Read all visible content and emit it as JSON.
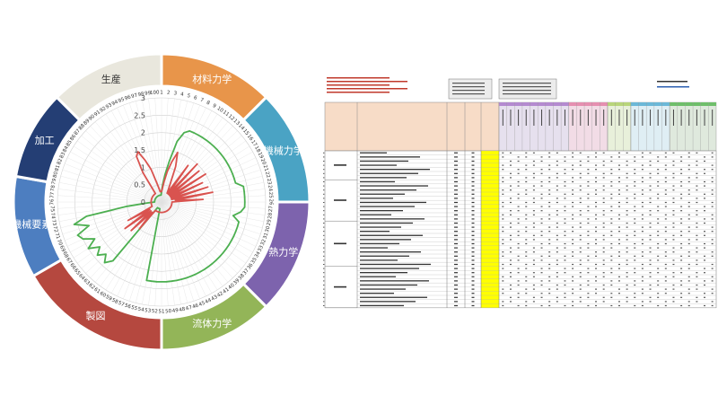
{
  "chart_data": [
    {
      "type": "radar",
      "sectors": [
        {
          "label": "材料力学",
          "color": "#e8954a"
        },
        {
          "label": "機械力学",
          "color": "#4aa3c4"
        },
        {
          "label": "熱力学",
          "color": "#7d63ad"
        },
        {
          "label": "流体力学",
          "color": "#93b558"
        },
        {
          "label": "製図",
          "color": "#b5483f"
        },
        {
          "label": "機械要素",
          "color": "#4d7ec0"
        },
        {
          "label": "加工",
          "color": "#243e74"
        },
        {
          "label": "生産",
          "color": "#e9e7dd"
        }
      ],
      "sector_spans": [
        [
          -90,
          -45
        ],
        [
          -45,
          0
        ],
        [
          0,
          45
        ],
        [
          45,
          90
        ],
        [
          90,
          150
        ],
        [
          150,
          190
        ],
        [
          190,
          225
        ],
        [
          225,
          270
        ]
      ],
      "rlim": [
        0,
        3
      ],
      "rticks": [
        "0",
        "0.5",
        "1",
        "1.5",
        "2",
        "2.5",
        "3"
      ],
      "categories": [
        "1",
        "2",
        "3",
        "4",
        "5",
        "6",
        "7",
        "8",
        "9",
        "10",
        "11",
        "12",
        "13",
        "14",
        "15",
        "16",
        "17",
        "18",
        "19",
        "20",
        "21",
        "22",
        "23",
        "24",
        "25",
        "26",
        "27",
        "28",
        "29",
        "30",
        "31",
        "32",
        "33",
        "34",
        "35",
        "36",
        "37",
        "38",
        "39",
        "40",
        "41",
        "42",
        "43",
        "44",
        "45",
        "46",
        "47",
        "48",
        "49",
        "50",
        "51",
        "52",
        "53",
        "54",
        "55",
        "56",
        "57",
        "58",
        "59",
        "60",
        "61",
        "62",
        "63",
        "64",
        "65",
        "66",
        "67",
        "68",
        "69",
        "70",
        "71",
        "72",
        "73",
        "74",
        "75",
        "76",
        "77",
        "78",
        "79",
        "80",
        "81",
        "82",
        "83",
        "84",
        "85",
        "86",
        "87",
        "88",
        "89",
        "90",
        "91",
        "92",
        "93",
        "94",
        "95",
        "96",
        "97",
        "98",
        "99",
        "100"
      ],
      "series": [
        {
          "color": "#4caf50",
          "values": [
            0.3,
            0.5,
            0.8,
            1.2,
            1.8,
            2.1,
            2.2,
            2.2,
            2.2,
            2.2,
            2.2,
            2.2,
            2.2,
            2.2,
            2.2,
            2.2,
            2.2,
            2.2,
            2.2,
            2.2,
            2.2,
            2.2,
            2.4,
            2.4,
            2.4,
            2.4,
            2.4,
            2.3,
            2.1,
            2.3,
            2.3,
            2.3,
            2.3,
            2.3,
            2.3,
            2.3,
            2.3,
            2.3,
            2.3,
            2.3,
            2.3,
            2.3,
            2.3,
            2.3,
            2.3,
            2.3,
            2.3,
            2.3,
            2.3,
            2.3,
            2.3,
            2.3,
            2.3,
            2.3,
            0.2,
            0.2,
            0.2,
            0.2,
            0.2,
            0.2,
            0.2,
            2.2,
            2.4,
            2.2,
            2.4,
            2.2,
            2.5,
            2.2,
            2.5,
            2.6,
            2.2,
            2.6,
            2.2,
            1.0,
            0.4,
            0.2,
            0.2,
            0.2,
            0.2,
            0.2,
            0.2,
            0.2,
            0.2,
            0.2,
            0.2,
            0.2,
            0.2,
            0.2,
            0.2,
            0.2,
            0.2,
            0.2,
            0.2,
            0.2,
            0.2,
            0.2,
            0.2,
            0.2,
            0.2,
            0.2
          ]
        },
        {
          "color": "#d9534f",
          "values": [
            0.3,
            0.4,
            0.6,
            0.9,
            1.2,
            1.5,
            1.1,
            0.6,
            0.4,
            0.3,
            1.3,
            0.3,
            1.5,
            0.3,
            1.4,
            0.3,
            1.5,
            0.3,
            1.3,
            0.3,
            1.4,
            0.3,
            1.5,
            0.4,
            1.2,
            0.3,
            0.3,
            0.3,
            0.3,
            0.3,
            0.3,
            0.3,
            0.3,
            0.3,
            0.3,
            0.3,
            0.3,
            0.3,
            0.3,
            0.3,
            0.3,
            0.3,
            0.3,
            0.3,
            0.3,
            0.3,
            0.3,
            0.3,
            0.3,
            0.3,
            0.3,
            0.3,
            0.3,
            0.3,
            0.3,
            0.3,
            0.3,
            0.3,
            0.3,
            0.3,
            0.3,
            1.0,
            0.4,
            1.2,
            0.4,
            1.3,
            0.4,
            1.1,
            0.3,
            0.3,
            0.3,
            0.3,
            0.3,
            0.3,
            0.3,
            0.3,
            0.3,
            0.3,
            0.3,
            0.3,
            0.3,
            0.3,
            0.3,
            0.3,
            0.3,
            0.3,
            0.3,
            0.3,
            0.3,
            0.3,
            0.3,
            1.0,
            1.5,
            1.6,
            1.3,
            1.0,
            0.6,
            0.4,
            0.3,
            0.3
          ]
        }
      ]
    },
    {
      "type": "table",
      "header_groups": [
        {
          "color": "#e6e0ee",
          "columns": 9
        },
        {
          "color": "#f2dce6",
          "columns": 5
        },
        {
          "color": "#e8f0da",
          "columns": 3
        },
        {
          "color": "#dfeef4",
          "columns": 5
        },
        {
          "color": "#dfe9dd",
          "columns": 6
        }
      ],
      "column_count": 28,
      "row_count": 38,
      "row_groups": [
        7,
        10,
        11,
        10
      ],
      "highlight_color": "#ffff00",
      "header_fill": "#f7dcc7",
      "header_text_color": "#c0392b",
      "link_color": "#2c5fb0"
    }
  ]
}
